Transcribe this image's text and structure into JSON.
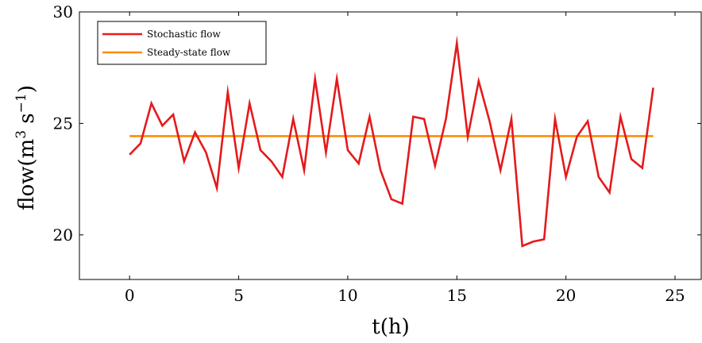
{
  "chart_data": {
    "type": "line",
    "xlabel": "t(h)",
    "ylabel": {
      "base": "flow(m",
      "sup1": "3",
      "mid": " s",
      "sup2": "−1",
      "end": ")"
    },
    "xlim": [
      -2.3,
      26.2
    ],
    "ylim": [
      18.0,
      30.0
    ],
    "x_ticks": [
      0,
      5,
      10,
      15,
      20,
      25
    ],
    "y_ticks": [
      20,
      25,
      30
    ],
    "grid": false,
    "legend_position": "top-left",
    "series": [
      {
        "name": "Stochastic flow",
        "color": "#e41a1c",
        "x": [
          0,
          0.5,
          1,
          1.5,
          2,
          2.5,
          3,
          3.5,
          4,
          4.5,
          5,
          5.5,
          6,
          6.5,
          7,
          7.5,
          8,
          8.5,
          9,
          9.5,
          10,
          10.5,
          11,
          11.5,
          12,
          12.5,
          13,
          13.5,
          14,
          14.5,
          15,
          15.5,
          16,
          16.5,
          17,
          17.5,
          18,
          18.5,
          19,
          19.5,
          20,
          20.5,
          21,
          21.5,
          22,
          22.5,
          23,
          23.5,
          24
        ],
        "y": [
          23.6,
          24.1,
          25.9,
          24.9,
          25.4,
          23.3,
          24.6,
          23.7,
          22.1,
          26.4,
          23.0,
          25.9,
          23.8,
          23.3,
          22.6,
          25.2,
          22.9,
          27.0,
          23.7,
          27.0,
          23.8,
          23.2,
          25.3,
          22.9,
          21.6,
          21.4,
          25.3,
          25.2,
          23.1,
          25.2,
          28.6,
          24.4,
          26.9,
          25.1,
          22.9,
          25.2,
          19.5,
          19.7,
          19.8,
          25.2,
          22.6,
          24.4,
          25.1,
          22.6,
          21.9,
          25.3,
          23.4,
          23.0,
          26.6
        ]
      },
      {
        "name": "Steady-state flow",
        "color": "#ff8c00",
        "x": [
          0,
          24
        ],
        "y": [
          24.43,
          24.43
        ]
      }
    ]
  }
}
